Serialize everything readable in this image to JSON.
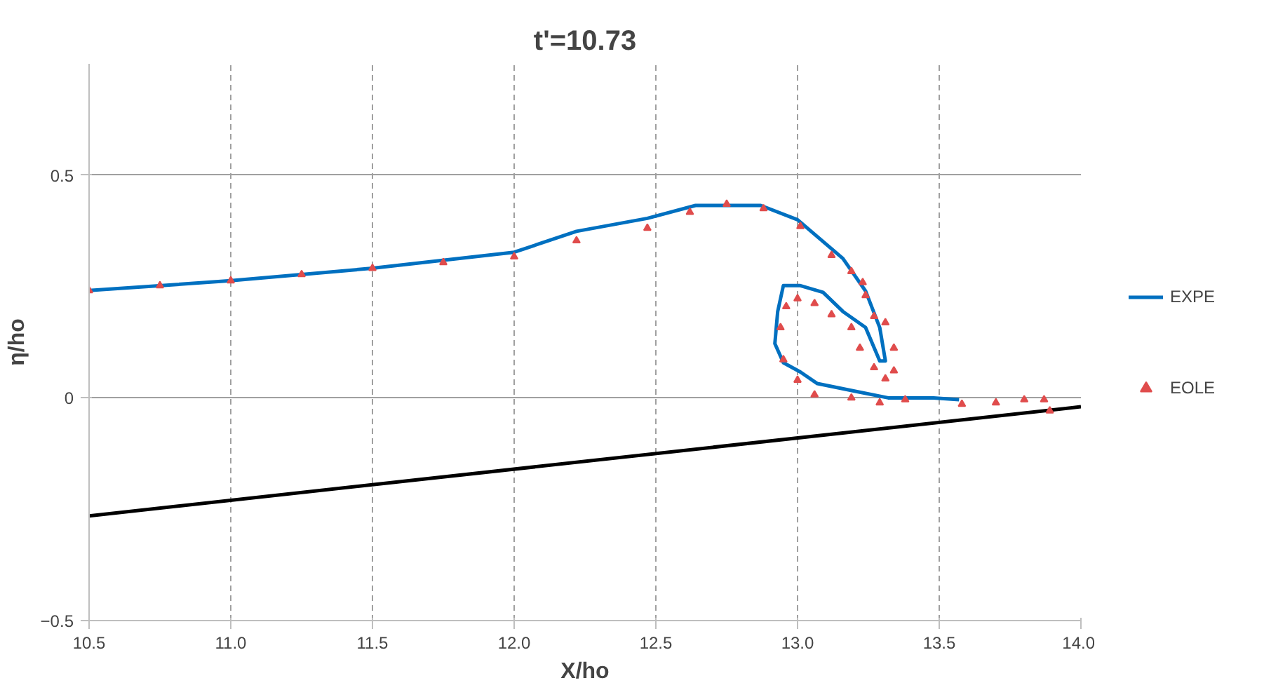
{
  "chart_data": {
    "type": "line",
    "title": "t'=10.73",
    "xlabel": "X/ho",
    "ylabel": "η/ho",
    "xlim": [
      10.5,
      14.0
    ],
    "ylim": [
      -0.5,
      0.75
    ],
    "xticks": [
      {
        "value": 10.5,
        "label": "10.5"
      },
      {
        "value": 11,
        "label": "11.0"
      },
      {
        "value": 11.5,
        "label": "11.5"
      },
      {
        "value": 12,
        "label": "12.0"
      },
      {
        "value": 12.5,
        "label": "12.5"
      },
      {
        "value": 13,
        "label": "13.0"
      },
      {
        "value": 13.5,
        "label": "13.5"
      },
      {
        "value": 14,
        "label": "14.0"
      }
    ],
    "yticks": [
      -0.5,
      0,
      0.5
    ],
    "grid": true,
    "legend": "right",
    "series": [
      {
        "name": "EXPE",
        "color": "#0070c0",
        "type": "line",
        "marker": "none",
        "x": [
          10.5,
          11.0,
          11.5,
          12.0,
          12.22,
          12.47,
          12.64,
          12.87,
          13.0,
          13.16,
          13.24,
          13.29,
          13.31,
          13.29,
          13.24,
          13.16,
          13.09,
          13.01,
          12.95,
          12.93,
          12.92,
          12.95,
          13.01,
          13.07,
          13.21,
          13.32,
          13.48,
          13.57
        ],
        "values": [
          0.241,
          0.263,
          0.291,
          0.327,
          0.374,
          0.403,
          0.432,
          0.432,
          0.4,
          0.313,
          0.24,
          0.158,
          0.083,
          0.083,
          0.158,
          0.194,
          0.237,
          0.252,
          0.252,
          0.194,
          0.122,
          0.079,
          0.058,
          0.032,
          0.014,
          0.0,
          0.0,
          -0.004
        ]
      },
      {
        "name": "EOLE",
        "color": "#e04c4c",
        "type": "scatter",
        "marker": "triangle",
        "x": [
          10.5,
          10.75,
          11.0,
          11.25,
          11.5,
          11.75,
          12.0,
          12.22,
          12.47,
          12.62,
          12.75,
          12.88,
          13.01,
          13.12,
          13.19,
          13.23,
          13.24,
          13.27,
          13.31,
          13.34,
          13.34,
          13.31,
          13.27,
          13.22,
          13.19,
          13.12,
          13.06,
          13.0,
          12.96,
          12.94,
          12.95,
          13.0,
          13.06,
          13.19,
          13.29,
          13.38,
          13.58,
          13.7,
          13.8,
          13.87,
          13.89
        ],
        "values": [
          0.241,
          0.252,
          0.263,
          0.277,
          0.291,
          0.304,
          0.317,
          0.353,
          0.381,
          0.417,
          0.435,
          0.425,
          0.385,
          0.32,
          0.284,
          0.259,
          0.23,
          0.183,
          0.169,
          0.112,
          0.061,
          0.043,
          0.068,
          0.112,
          0.158,
          0.187,
          0.212,
          0.223,
          0.205,
          0.158,
          0.086,
          0.04,
          0.007,
          0.0,
          -0.011,
          -0.004,
          -0.014,
          -0.011,
          -0.004,
          -0.004,
          -0.029
        ]
      },
      {
        "color": "#000000",
        "marker": "none",
        "x": [
          10.5,
          14.0
        ],
        "values": [
          -0.265,
          -0.02
        ]
      }
    ]
  }
}
